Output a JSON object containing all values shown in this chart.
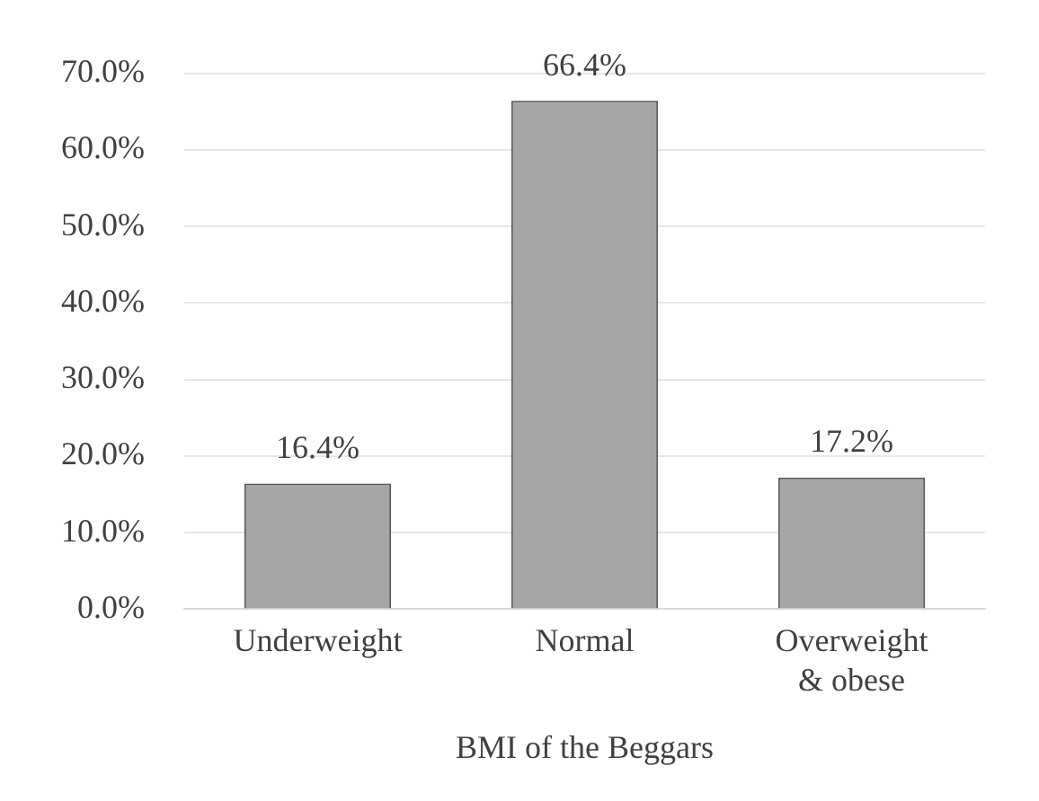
{
  "chart_data": {
    "type": "bar",
    "xlabel": "BMI of the Beggars",
    "categories": [
      "Underweight",
      "Normal",
      "Overweight & obese"
    ],
    "values": [
      16.4,
      66.4,
      17.2
    ],
    "color": "#a6a6a6",
    "value_labels": [
      "16.4%",
      "66.4%",
      "17.2%"
    ],
    "ylim": [
      0,
      70
    ],
    "yticks": [
      {
        "value": 0,
        "label": "0.0%"
      },
      {
        "value": 10,
        "label": "10.0%"
      },
      {
        "value": 20,
        "label": "20.0%"
      },
      {
        "value": 30,
        "label": "30.0%"
      },
      {
        "value": 40,
        "label": "40.0%"
      },
      {
        "value": 50,
        "label": "50.0%"
      },
      {
        "value": 60,
        "label": "60.0%"
      },
      {
        "value": 70,
        "label": "70.0%"
      }
    ],
    "grid": "y",
    "legend": false
  }
}
